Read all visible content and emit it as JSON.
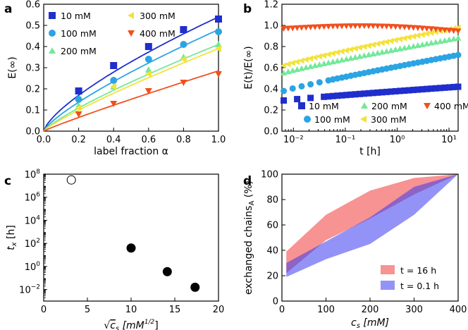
{
  "chart_data": [
    {
      "panel": "a",
      "type": "scatter",
      "xlabel": "label fraction α",
      "ylabel": "E(∞)",
      "xlim": [
        0,
        1.0
      ],
      "ylim": [
        0,
        0.6
      ],
      "xticks": [
        "0.0",
        "0.2",
        "0.4",
        "0.6",
        "0.8",
        "1.0"
      ],
      "yticks": [
        "0.0",
        "0.1",
        "0.2",
        "0.3",
        "0.4",
        "0.5",
        "0.6"
      ],
      "xtick_values": [
        0,
        0.2,
        0.4,
        0.6,
        0.8,
        1.0
      ],
      "ytick_values": [
        0,
        0.1,
        0.2,
        0.3,
        0.4,
        0.5,
        0.6
      ],
      "legend_position": "top-left",
      "series": [
        {
          "name": "10 mM",
          "marker": "square",
          "color": "#1f2ecc",
          "x": [
            0.2,
            0.4,
            0.6,
            0.8,
            1.0
          ],
          "y": [
            0.19,
            0.31,
            0.4,
            0.48,
            0.53
          ],
          "fit": {
            "a": 0.54,
            "p": 0.72
          }
        },
        {
          "name": "100 mM",
          "marker": "circle",
          "color": "#2ba4e3",
          "x": [
            0.2,
            0.4,
            0.6,
            0.8,
            1.0
          ],
          "y": [
            0.15,
            0.24,
            0.34,
            0.41,
            0.47
          ],
          "fit": {
            "a": 0.48,
            "p": 0.78
          }
        },
        {
          "name": "200 mM",
          "marker": "triangle-up",
          "color": "#74e89a",
          "x": [
            0.2,
            0.4,
            0.6,
            0.8,
            1.0
          ],
          "y": [
            0.12,
            0.21,
            0.29,
            0.35,
            0.41
          ],
          "fit": {
            "a": 0.41,
            "p": 0.82
          }
        },
        {
          "name": "300 mM",
          "marker": "triangle-left",
          "color": "#f3e23a",
          "x": [
            0.2,
            0.4,
            0.6,
            0.8,
            1.0
          ],
          "y": [
            0.11,
            0.21,
            0.27,
            0.34,
            0.39
          ],
          "fit": {
            "a": 0.39,
            "p": 0.85
          }
        },
        {
          "name": "400 mM",
          "marker": "triangle-down",
          "color": "#f0501e",
          "x": [
            0.2,
            0.4,
            0.6,
            0.8,
            1.0
          ],
          "y": [
            0.08,
            0.13,
            0.19,
            0.23,
            0.27
          ],
          "fit": {
            "a": 0.285,
            "p": 0.92
          }
        }
      ]
    },
    {
      "panel": "b",
      "type": "scatter",
      "xlabel": "t [h]",
      "ylabel": "E(t)/E(∞)",
      "xscale": "log",
      "xlim": [
        0.006,
        15
      ],
      "ylim": [
        0.0,
        1.2
      ],
      "xticks": [
        "10⁻²",
        "10⁻¹",
        "10⁰",
        "10¹"
      ],
      "xtick_values": [
        0.01,
        0.1,
        1,
        10
      ],
      "yticks": [
        "0.0",
        "0.2",
        "0.4",
        "0.6",
        "0.8",
        "1.0",
        "1.2"
      ],
      "ytick_values": [
        0,
        0.2,
        0.4,
        0.6,
        0.8,
        1.0,
        1.2
      ],
      "legend_position": "lower-center",
      "series": [
        {
          "name": "10 mM",
          "marker": "square",
          "color": "#1f2ecc",
          "y_start": 0.29,
          "y_end": 0.42
        },
        {
          "name": "100 mM",
          "marker": "circle",
          "color": "#2ba4e3",
          "y_start": 0.38,
          "y_end": 0.72
        },
        {
          "name": "200 mM",
          "marker": "triangle-up",
          "color": "#74e89a",
          "y_start": 0.55,
          "y_end": 0.88
        },
        {
          "name": "300 mM",
          "marker": "triangle-left",
          "color": "#f3e23a",
          "y_start": 0.62,
          "y_end": 0.98
        },
        {
          "name": "400 mM",
          "marker": "triangle-down",
          "color": "#f0501e",
          "y_start": 0.97,
          "y_end": 0.97
        }
      ]
    },
    {
      "panel": "c",
      "type": "scatter",
      "xlabel": "√cₛ  [mM¹ᐟ²]",
      "xlabel_root": "√",
      "xlabel_c": "c",
      "xlabel_sub": "s",
      "xlabel_unit": "[mM",
      "xlabel_sup": "1/2",
      "xlabel_close": "]",
      "ylabel": "tₓ [h]",
      "ylabel_main": "t",
      "ylabel_sub": "x",
      "ylabel_unit": " [h]",
      "yscale": "log",
      "xlim": [
        0,
        20
      ],
      "ylim_log10": [
        -3,
        8
      ],
      "xticks": [
        "0",
        "5",
        "10",
        "15",
        "20"
      ],
      "xtick_values": [
        0,
        5,
        10,
        15,
        20
      ],
      "ytick_base": "10",
      "ytick_exps": [
        "−2",
        "0",
        "2",
        "4",
        "6",
        "8"
      ],
      "ytick_log10": [
        -2,
        0,
        2,
        4,
        6,
        8
      ],
      "points": [
        {
          "x": 3.16,
          "log10y": 7.5,
          "filled": false
        },
        {
          "x": 10.0,
          "log10y": 1.6,
          "filled": true
        },
        {
          "x": 14.14,
          "log10y": -0.45,
          "filled": true
        },
        {
          "x": 17.32,
          "log10y": -1.8,
          "filled": true
        }
      ]
    },
    {
      "panel": "d",
      "type": "area",
      "xlabel": "cₛ  [mM]",
      "xlabel_c": "c",
      "xlabel_sub": "s",
      "xlabel_unit": "  [mM]",
      "ylabel": "exchanged chains_A (%)",
      "ylabel_main": "exchanged chains",
      "ylabel_sub": "A",
      "ylabel_unit": " (%)",
      "xlim": [
        0,
        400
      ],
      "ylim": [
        0,
        100
      ],
      "xticks": [
        "0",
        "100",
        "200",
        "300",
        "400"
      ],
      "xtick_values": [
        0,
        100,
        200,
        300,
        400
      ],
      "yticks": [
        "0",
        "20",
        "40",
        "60",
        "80",
        "100"
      ],
      "ytick_values": [
        0,
        20,
        40,
        60,
        80,
        100
      ],
      "legend_position": "lower-right",
      "series": [
        {
          "name": "t = 16 h",
          "color": "#f03a3a",
          "x": [
            10,
            100,
            200,
            300,
            400
          ],
          "lower": [
            22,
            48,
            65,
            84,
            100
          ],
          "upper": [
            39,
            68,
            87,
            97,
            100
          ]
        },
        {
          "name": "t = 0.1 h",
          "color": "#3a3af0",
          "x": [
            10,
            100,
            200,
            300,
            400
          ],
          "lower": [
            19,
            33,
            45,
            68,
            100
          ],
          "upper": [
            30,
            47,
            66,
            90,
            100
          ]
        }
      ]
    }
  ]
}
